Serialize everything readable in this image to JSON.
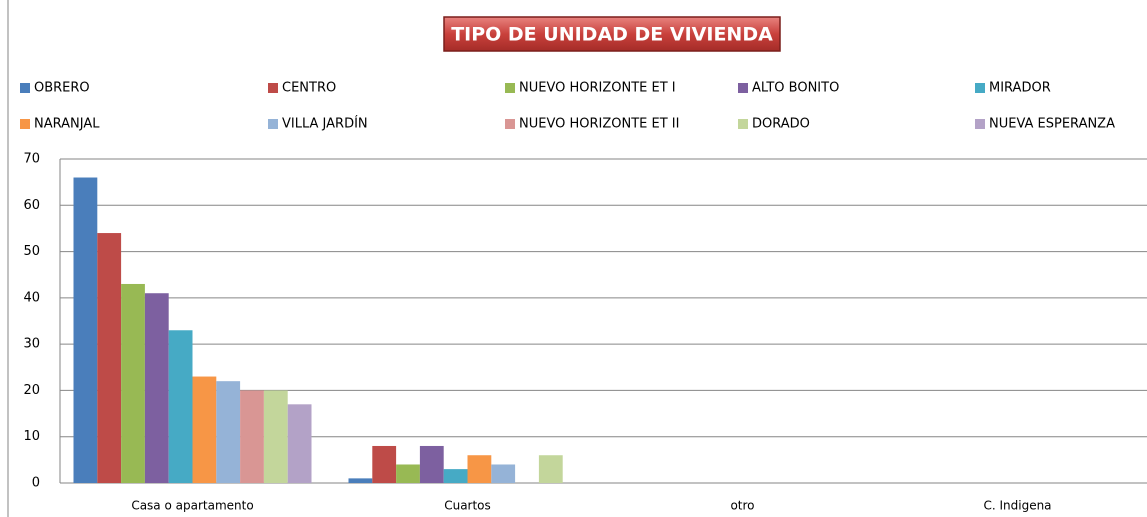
{
  "chart_data": {
    "type": "bar",
    "title": "TIPO DE UNIDAD DE VIVIENDA",
    "categories": [
      "Casa o apartamento",
      "Cuartos",
      "otro",
      "C. Indigena"
    ],
    "series": [
      {
        "name": "OBRERO",
        "color": "#4a7ebb",
        "values": [
          66,
          1,
          0,
          0
        ]
      },
      {
        "name": "CENTRO",
        "color": "#be4b48",
        "values": [
          54,
          8,
          0,
          0
        ]
      },
      {
        "name": "NUEVO HORIZONTE ET I",
        "color": "#98b954",
        "values": [
          43,
          4,
          0,
          0
        ]
      },
      {
        "name": "ALTO BONITO",
        "color": "#7d60a0",
        "values": [
          41,
          8,
          0,
          0
        ]
      },
      {
        "name": "MIRADOR",
        "color": "#46aac5",
        "values": [
          33,
          3,
          0,
          0
        ]
      },
      {
        "name": "NARANJAL",
        "color": "#f79646",
        "values": [
          23,
          6,
          0,
          0
        ]
      },
      {
        "name": "VILLA JARDÍN",
        "color": "#95b3d7",
        "values": [
          22,
          4,
          0,
          0
        ]
      },
      {
        "name": "NUEVO HORIZONTE ET II",
        "color": "#d99694",
        "values": [
          20,
          0,
          0,
          0
        ]
      },
      {
        "name": "DORADO",
        "color": "#c3d69b",
        "values": [
          20,
          6,
          0,
          0
        ]
      },
      {
        "name": "NUEVA ESPERANZA",
        "color": "#b3a2c7",
        "values": [
          17,
          0,
          0,
          0
        ]
      }
    ],
    "ylim": [
      0,
      70
    ],
    "yticks": [
      0,
      10,
      20,
      30,
      40,
      50,
      60,
      70
    ],
    "grid": true,
    "legend": "top"
  }
}
